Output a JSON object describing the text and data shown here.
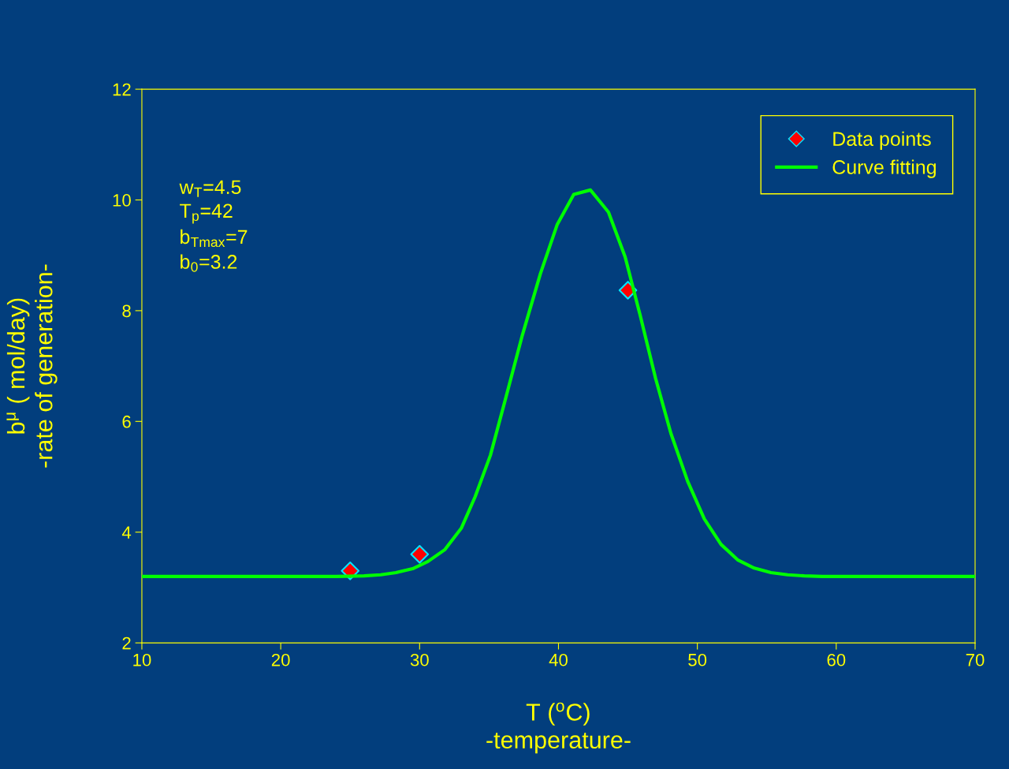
{
  "chart_data": {
    "type": "line",
    "xlabel": "T ($^{o}$C)\n-temperature-",
    "ylabel": "b$^{μ}$ ( mol/day)\n-rate of generation-",
    "series": [
      {
        "name": "Data points",
        "type": "scatter",
        "color": "#ff0000",
        "marker": "diamond",
        "x": [
          25,
          30,
          45
        ],
        "values": [
          3.3,
          3.6,
          8.37
        ]
      },
      {
        "name": "Curve fitting",
        "color": "#00ff00",
        "marker": "none",
        "line_style": "solid",
        "x": [
          10,
          24,
          26,
          27.2,
          28.3,
          29.5,
          30.6,
          31.8,
          33,
          34,
          35.1,
          36.2,
          37.4,
          38.7,
          39.9,
          41.1,
          42.3,
          43.6,
          44.8,
          45.9,
          47,
          48.1,
          49.3,
          50.5,
          51.7,
          52.9,
          54.1,
          55.3,
          56.5,
          57.7,
          59,
          70
        ],
        "values": [
          3.2,
          3.2,
          3.21,
          3.23,
          3.27,
          3.34,
          3.47,
          3.68,
          4.07,
          4.64,
          5.39,
          6.42,
          7.56,
          8.67,
          9.55,
          10.1,
          10.18,
          9.78,
          8.97,
          7.9,
          6.77,
          5.78,
          4.92,
          4.24,
          3.78,
          3.5,
          3.35,
          3.27,
          3.23,
          3.21,
          3.2,
          3.2
        ]
      }
    ],
    "xlim": [
      10,
      70
    ],
    "xticks": [
      10,
      20,
      30,
      40,
      50,
      60,
      70
    ],
    "ylim": [
      2,
      12
    ],
    "yticks": [
      2,
      4,
      6,
      8,
      10,
      12
    ],
    "grid": false,
    "legend": "top right",
    "annotations": [
      "w$_{T}$=4.5",
      "T$_{p}$=42",
      "b$_{Tmax}$=7",
      "b$_{0}$=3.2"
    ]
  }
}
